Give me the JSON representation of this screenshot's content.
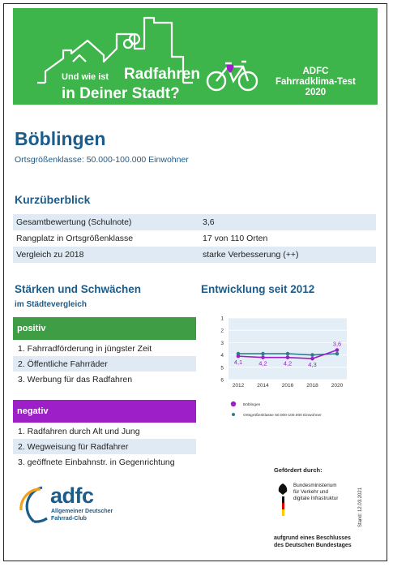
{
  "banner": {
    "tagline_small": "Und wie ist",
    "tagline_big1": "Radfahren",
    "tagline_big2": "in Deiner Stadt?",
    "brand_line1": "ADFC",
    "brand_line2": "Fahrradklima-Test",
    "brand_line3": "2020",
    "color": "#3db54a"
  },
  "city": {
    "name": "Böblingen",
    "size_class": "Ortsgrößenklasse: 50.000-100.000 Einwohner"
  },
  "overview": {
    "heading": "Kurzüberblick",
    "rows": [
      {
        "label": "Gesamtbewertung (Schulnote)",
        "value": "3,6"
      },
      {
        "label": "Rangplatz in Ortsgrößenklasse",
        "value": "17 von 110 Orten"
      },
      {
        "label": "Vergleich zu 2018",
        "value": "starke Verbesserung (++)"
      }
    ]
  },
  "strengths": {
    "heading": "Stärken und Schwächen",
    "subheading": "im Städtevergleich",
    "positive_label": "positiv",
    "positive": [
      "1. Fahrradförderung in jüngster Zeit",
      "2. Öffentliche Fahrräder",
      "3. Werbung für das Radfahren"
    ],
    "negative_label": "negativ",
    "negative": [
      "1. Radfahren durch Alt und Jung",
      "2. Wegweisung für Radfahrer",
      "3. geöffnete Einbahnstr. in Gegenrichtung"
    ],
    "positive_color": "#3f9e45",
    "negative_color": "#9c1fc8"
  },
  "development": {
    "heading": "Entwicklung seit 2012"
  },
  "chart_data": {
    "type": "line",
    "title": "",
    "x": [
      2012,
      2014,
      2016,
      2018,
      2020
    ],
    "ylim": [
      1,
      6
    ],
    "y_inverted": true,
    "yticks": [
      1,
      2,
      3,
      4,
      5,
      6
    ],
    "grid": true,
    "legend_position": "bottom",
    "series": [
      {
        "name": "Böblingen",
        "color": "#9c1fc8",
        "values": [
          4.1,
          4.2,
          4.2,
          4.3,
          3.6
        ],
        "labels": [
          "4,1",
          "4,2",
          "4,2",
          "4,3",
          "3,6"
        ]
      },
      {
        "name": "Ortsgrößenklasse 50.000-100.000 Einwohner",
        "color": "#2e7d8c",
        "values": [
          3.9,
          3.9,
          3.9,
          4.0,
          3.9
        ]
      }
    ]
  },
  "footer": {
    "adfc_word": "adfc",
    "adfc_line1": "Allgemeiner Deutscher",
    "adfc_line2": "Fahrrad-Club",
    "funded_by": "Gefördert durch:",
    "ministry_line1": "Bundesministerium",
    "ministry_line2": "für Verkehr und",
    "ministry_line3": "digitale Infrastruktur",
    "resolution_line1": "aufgrund eines Beschlusses",
    "resolution_line2": "des Deutschen Bundestages",
    "stand": "Stand: 12.03.2021"
  }
}
